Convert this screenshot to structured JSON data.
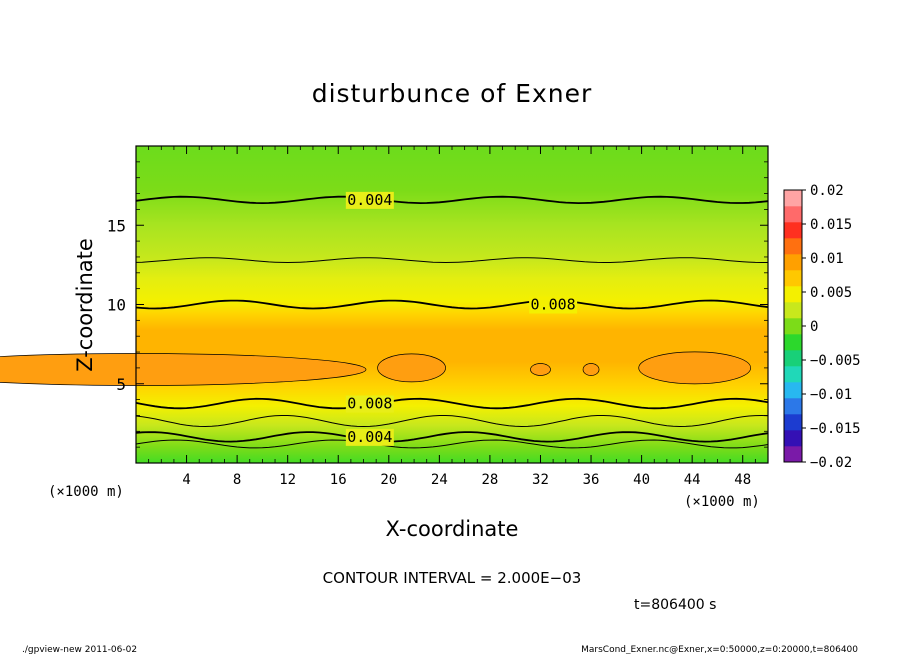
{
  "chart_data": {
    "type": "heatmap",
    "title": "disturbunce of Exner",
    "xlabel": "X-coordinate",
    "ylabel": "Z-coordinate",
    "x_unit": "(×1000 m)",
    "y_unit": "(×1000 m)",
    "xlim": [
      0,
      50
    ],
    "ylim": [
      0,
      20
    ],
    "x_ticks": [
      "4",
      "8",
      "12",
      "16",
      "20",
      "24",
      "28",
      "32",
      "36",
      "40",
      "44",
      "48"
    ],
    "y_ticks": [
      "5",
      "10",
      "15"
    ],
    "colorbar": {
      "ticks": [
        "0.02",
        "0.015",
        "0.01",
        "0.005",
        "0",
        "−0.005",
        "−0.01",
        "−0.015",
        "−0.02"
      ],
      "range": [
        -0.02,
        0.02
      ],
      "colors": [
        "#7a1aa8",
        "#3410b4",
        "#1c3cd0",
        "#2c78e8",
        "#28b8f0",
        "#20d8b8",
        "#18d078",
        "#2cd82c",
        "#7cdc18",
        "#c8e81c",
        "#f4f000",
        "#ffc800",
        "#ffa000",
        "#ff7010",
        "#ff3020",
        "#ff6a6a",
        "#ffa4a4"
      ]
    },
    "contour_lines": [
      {
        "z": 1.2,
        "amplitude": 0.25,
        "label": ""
      },
      {
        "z": 1.65,
        "amplitude": 0.3,
        "label": "0.004"
      },
      {
        "z": 2.65,
        "amplitude": 0.35,
        "label": ""
      },
      {
        "z": 3.75,
        "amplitude": 0.3,
        "label": "0.008"
      },
      {
        "z": 10.0,
        "amplitude": 0.25,
        "label": "0.008"
      },
      {
        "z": 12.8,
        "amplitude": 0.15,
        "label": ""
      },
      {
        "z": 16.6,
        "amplitude": 0.2,
        "label": "0.004"
      }
    ],
    "contour_interval": "CONTOUR INTERVAL = 2.000E−03",
    "time": "t=806400 s"
  },
  "footer": {
    "left": "./gpview-new  2011-06-02",
    "right": "MarsCond_Exner.nc@Exner,x=0:50000,z=0:20000,t=806400"
  }
}
